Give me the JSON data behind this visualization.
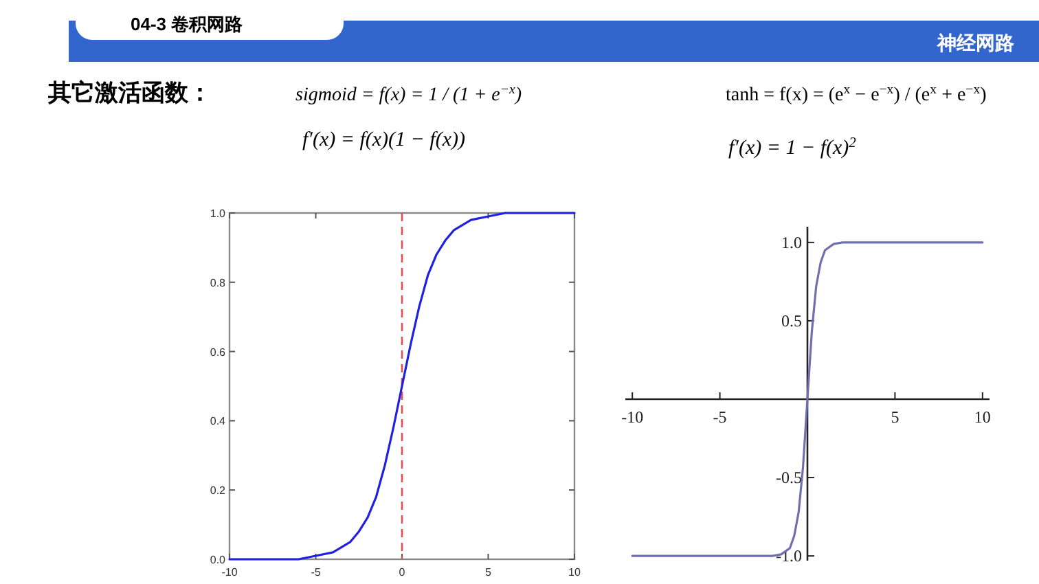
{
  "chart_data": [
    {
      "type": "line",
      "annotations": [
        "04-3 卷积网路",
        "神经网路",
        "其它激活函数：",
        "sigmoid = f(x) = 1 / (1 + e$^{−x}$)",
        "f′(x) = f(x)(1 − f(x))"
      ],
      "xlim": [
        -10,
        10
      ],
      "ylim": [
        0,
        1
      ],
      "xticks": [
        -10,
        -5,
        0,
        5,
        10
      ],
      "yticks": [
        {
          "value": 0,
          "label": "0.0"
        },
        {
          "value": 0.2,
          "label": "0.2"
        },
        {
          "value": 0.4,
          "label": "0.4"
        },
        {
          "value": 0.6,
          "label": "0.6"
        },
        {
          "value": 0.8,
          "label": "0.8"
        },
        {
          "value": 1,
          "label": "1.0"
        }
      ],
      "x": [
        -10,
        -8,
        -6,
        -5,
        -4,
        -3,
        -2.5,
        -2,
        -1.5,
        -1,
        -0.5,
        0,
        0.5,
        1,
        1.5,
        2,
        2.5,
        3,
        4,
        5,
        6,
        8,
        10
      ],
      "series": [
        {
          "color": "#2020e0",
          "values": [
            0,
            0,
            0,
            0.01,
            0.02,
            0.05,
            0.08,
            0.12,
            0.18,
            0.27,
            0.38,
            0.5,
            0.62,
            0.73,
            0.82,
            0.88,
            0.92,
            0.95,
            0.98,
            0.99,
            1,
            1,
            1
          ]
        }
      ],
      "ref_lines": [
        {
          "axis": "x",
          "value": 0,
          "color": "#e05050",
          "line_style": "dashed"
        }
      ]
    },
    {
      "type": "line",
      "annotations": [
        "tanh = f(x) = (e$^{x}$ − e$^{−x}$) / (e$^{x}$ + e$^{−x}$)",
        "f′(x) = 1 − f(x)$^{2}$"
      ],
      "xlim": [
        -10.4,
        10.4
      ],
      "ylim": [
        -1.03,
        1.1
      ],
      "xticks": [
        -10,
        -5,
        5,
        10
      ],
      "yticks": [
        {
          "value": -1,
          "label": "-1.0"
        },
        {
          "value": -0.5,
          "label": "-0.5"
        },
        {
          "value": 0.5,
          "label": "0.5"
        },
        {
          "value": 1,
          "label": "1.0"
        }
      ],
      "x": [
        -10,
        -5,
        -4,
        -3,
        -2,
        -1.5,
        -1,
        -0.75,
        -0.5,
        -0.25,
        0,
        0.25,
        0.5,
        0.75,
        1,
        1.5,
        2,
        3,
        4,
        5,
        10
      ],
      "series": [
        {
          "color": "#7070b0",
          "values": [
            -1,
            -1,
            -1,
            -1,
            -1,
            -0.99,
            -0.95,
            -0.87,
            -0.72,
            -0.43,
            0,
            0.43,
            0.72,
            0.87,
            0.95,
            0.99,
            1,
            1,
            1,
            1,
            1
          ]
        }
      ]
    }
  ]
}
